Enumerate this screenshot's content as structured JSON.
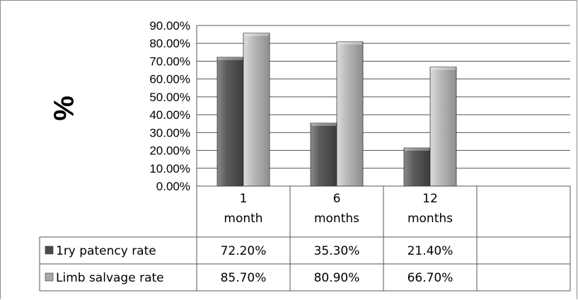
{
  "chart_data": {
    "type": "bar",
    "ylabel": "%",
    "ylim": [
      0,
      90
    ],
    "yticks": [
      "0.00%",
      "10.00%",
      "20.00%",
      "30.00%",
      "40.00%",
      "50.00%",
      "60.00%",
      "70.00%",
      "80.00%",
      "90.00%"
    ],
    "categories": [
      [
        "1",
        "month"
      ],
      [
        "6",
        "months"
      ],
      [
        "12",
        "months"
      ]
    ],
    "series": [
      {
        "name": "1ry patency rate",
        "color": "#5a5a5a",
        "values": [
          72.2,
          35.3,
          21.4
        ],
        "labels": [
          "72.20%",
          "35.30%",
          "21.40%"
        ]
      },
      {
        "name": "Limb salvage rate",
        "color": "#b4b4b4",
        "values": [
          85.7,
          80.9,
          66.7
        ],
        "labels": [
          "85.70%",
          "80.90%",
          "66.70%"
        ]
      }
    ],
    "grid": true,
    "legend": "data-table"
  }
}
